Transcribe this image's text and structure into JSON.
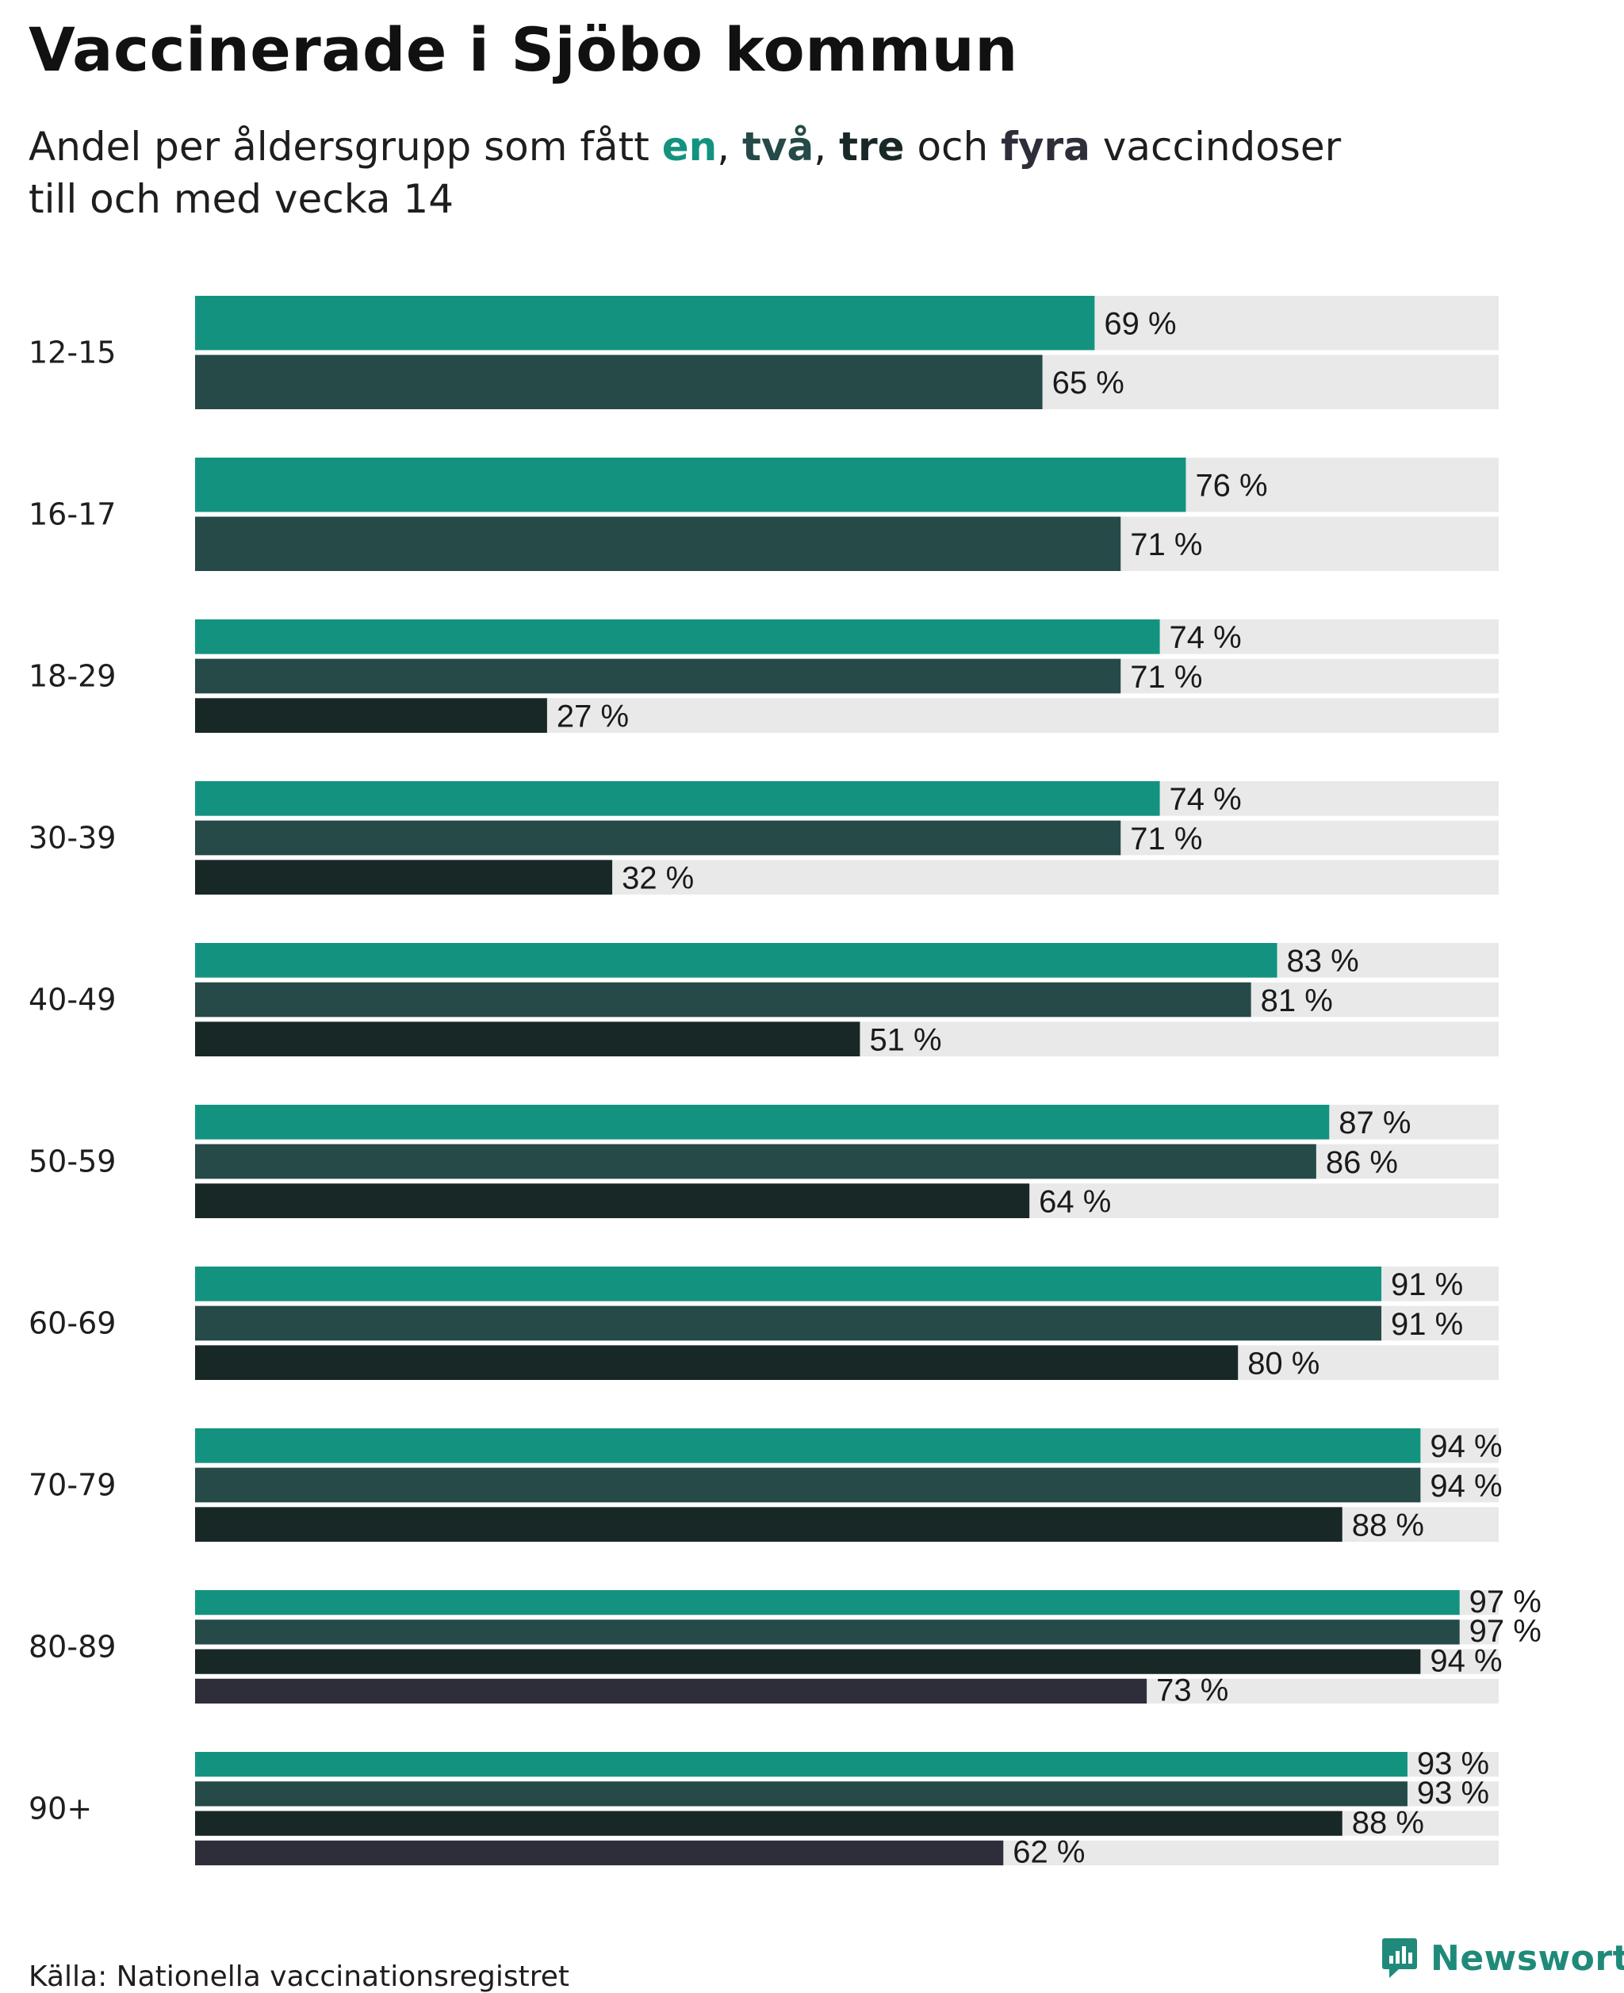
{
  "title": "Vaccinerade i Sjöbo kommun",
  "subtitle": {
    "prefix": "Andel per åldersgrupp som fått ",
    "dose1": "en",
    "sep1": ", ",
    "dose2": "två",
    "sep2": ", ",
    "dose3": "tre",
    "sep3": " och ",
    "dose4": "fyra",
    "suffix": " vaccindoser",
    "line2": "till och med vecka 14"
  },
  "colors": {
    "dose1": "#13937f",
    "dose2": "#254a48",
    "dose3": "#182826",
    "dose4": "#2e2e3b",
    "track": "#e9e9e9",
    "brand": "#1f8a7a"
  },
  "chart_data": {
    "type": "bar",
    "orientation": "horizontal",
    "title": "Vaccinerade i Sjöbo kommun",
    "xlim": [
      0,
      100
    ],
    "unit": "%",
    "categories": [
      "12-15",
      "16-17",
      "18-29",
      "30-39",
      "40-49",
      "50-59",
      "60-69",
      "70-79",
      "80-89",
      "90+"
    ],
    "series": [
      {
        "name": "en",
        "values": [
          69,
          76,
          74,
          74,
          83,
          87,
          91,
          94,
          97,
          93
        ]
      },
      {
        "name": "två",
        "values": [
          65,
          71,
          71,
          71,
          81,
          86,
          91,
          94,
          97,
          93
        ]
      },
      {
        "name": "tre",
        "values": [
          null,
          null,
          27,
          32,
          51,
          64,
          80,
          88,
          94,
          88
        ]
      },
      {
        "name": "fyra",
        "values": [
          null,
          null,
          null,
          null,
          null,
          null,
          null,
          null,
          73,
          62
        ]
      }
    ]
  },
  "source": "Källa: Nationella vaccinationsregistret",
  "brand": {
    "name": "Newsworthy",
    "icon": "newsworthy-logo-icon"
  }
}
